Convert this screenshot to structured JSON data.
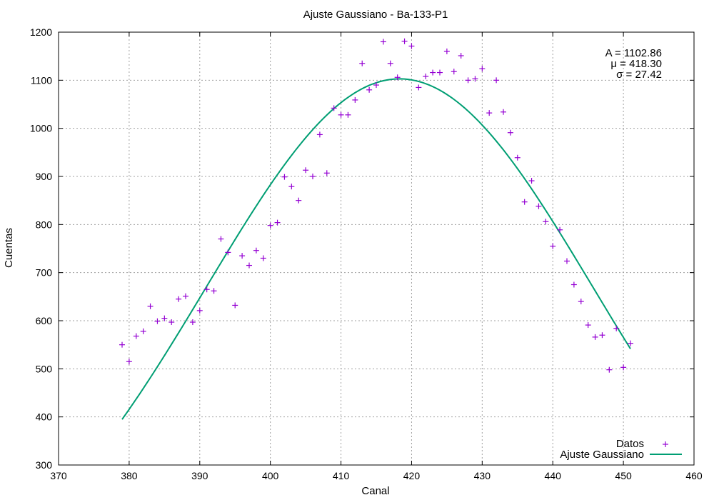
{
  "chart_data": {
    "type": "scatter",
    "title": "Ajuste Gaussiano - Ba-133-P1",
    "xlabel": "Canal",
    "ylabel": "Cuentas",
    "xlim": [
      370,
      460
    ],
    "ylim": [
      300,
      1200
    ],
    "xticks": [
      "370",
      "380",
      "390",
      "400",
      "410",
      "420",
      "430",
      "440",
      "450",
      "460"
    ],
    "yticks": [
      "300",
      "400",
      "500",
      "600",
      "700",
      "800",
      "900",
      "1000",
      "1100",
      "1200"
    ],
    "grid": true,
    "legend_position": "bottom-right",
    "annotations": [
      "A = 1102.86",
      "μ = 418.30",
      "σ = 27.42"
    ],
    "series": [
      {
        "name": "Datos",
        "kind": "points",
        "marker": "+",
        "color": "#9400d3",
        "x": [
          379,
          380,
          381,
          382,
          383,
          384,
          385,
          386,
          387,
          388,
          389,
          390,
          391,
          392,
          393,
          394,
          395,
          396,
          397,
          398,
          399,
          400,
          401,
          402,
          403,
          404,
          405,
          406,
          407,
          408,
          409,
          410,
          411,
          412,
          413,
          414,
          415,
          416,
          417,
          418,
          419,
          420,
          421,
          422,
          423,
          424,
          425,
          426,
          427,
          428,
          429,
          430,
          431,
          432,
          433,
          434,
          435,
          436,
          437,
          438,
          439,
          440,
          441,
          442,
          443,
          444,
          445,
          446,
          447,
          448,
          449,
          450,
          451
        ],
        "y": [
          550,
          515,
          568,
          578,
          630,
          599,
          605,
          597,
          645,
          651,
          597,
          621,
          665,
          662,
          770,
          742,
          632,
          735,
          715,
          746,
          730,
          798,
          804,
          899,
          879,
          850,
          913,
          900,
          987,
          907,
          1042,
          1028,
          1028,
          1059,
          1135,
          1080,
          1090,
          1180,
          1135,
          1106,
          1181,
          1171,
          1085,
          1108,
          1116,
          1116,
          1160,
          1118,
          1151,
          1100,
          1103,
          1124,
          1032,
          1100,
          1034,
          991,
          939,
          847,
          891,
          838,
          806,
          755,
          789,
          724,
          675,
          640,
          591,
          566,
          570,
          498,
          584,
          503,
          553
        ]
      },
      {
        "name": "Ajuste Gaussiano",
        "kind": "line",
        "color": "#009e73",
        "model": {
          "A": 1102.86,
          "mu": 418.3,
          "sigma": 27.42
        },
        "x_range": [
          379,
          451
        ]
      }
    ]
  }
}
